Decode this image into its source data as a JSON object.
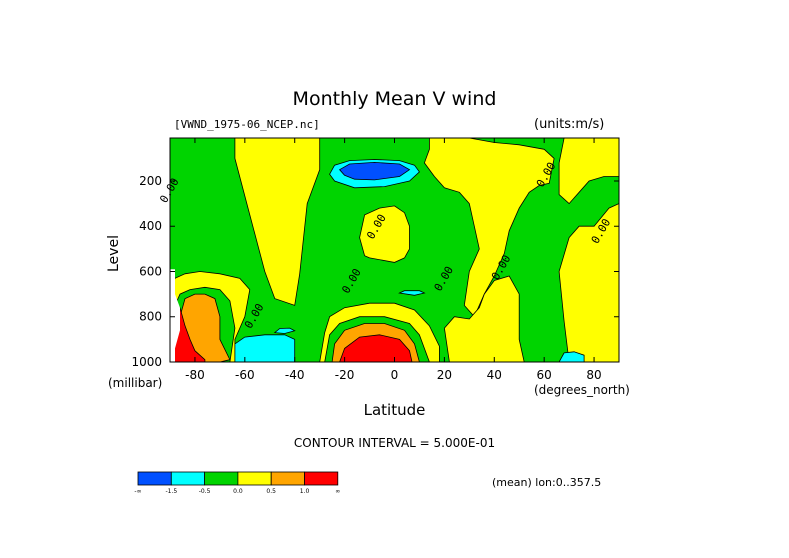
{
  "chart_data": {
    "type": "heatmap",
    "title": "Monthly Mean V wind",
    "file_label": "[VWND_1975-06_NCEP.nc]",
    "units_label": "(units:m/s)",
    "ylabel": "Level",
    "ylabel_units": "(millibar)",
    "xlabel": "Latitude",
    "xlabel_units": "(degrees_north)",
    "contour_interval_text": "CONTOUR INTERVAL = 5.000E-01",
    "mean_text": "(mean) lon:0..357.5",
    "xlim": [
      -90,
      90
    ],
    "ylim": [
      1000,
      10
    ],
    "x_ticks": [
      -80,
      -60,
      -40,
      -20,
      0,
      20,
      40,
      60,
      80
    ],
    "y_ticks": [
      200,
      400,
      600,
      800,
      1000
    ],
    "contour_labels": [
      {
        "text": "0.00",
        "lat": -89,
        "level": 250
      },
      {
        "text": "0.00",
        "lat": 62,
        "level": 180
      },
      {
        "text": "0.00",
        "lat": -6,
        "level": 410
      },
      {
        "text": "0.00",
        "lat": 84,
        "level": 430
      },
      {
        "text": "0.00",
        "lat": -16,
        "level": 650
      },
      {
        "text": "0.00",
        "lat": 21,
        "level": 640
      },
      {
        "text": "0.00",
        "lat": 44,
        "level": 590
      },
      {
        "text": "0.00",
        "lat": -55,
        "level": 805
      }
    ],
    "regions": [
      {
        "class": "0.0 to 0.5",
        "color": "#ffff00",
        "points": [
          [
            -64,
            10
          ],
          [
            -64,
            100
          ],
          [
            -58,
            350
          ],
          [
            -52,
            600
          ],
          [
            -48,
            720
          ],
          [
            -40,
            750
          ],
          [
            -38,
            610
          ],
          [
            -35,
            300
          ],
          [
            -30,
            150
          ],
          [
            -30,
            10
          ]
        ]
      },
      {
        "class": "0.0 to 0.5",
        "color": "#ffff00",
        "points": [
          [
            -10,
            540
          ],
          [
            -12,
            530
          ],
          [
            -14,
            450
          ],
          [
            -12,
            350
          ],
          [
            -6,
            320
          ],
          [
            0,
            310
          ],
          [
            4,
            340
          ],
          [
            6,
            400
          ],
          [
            6,
            500
          ],
          [
            4,
            540
          ],
          [
            0,
            560
          ]
        ]
      },
      {
        "class": "0.0 to 0.5",
        "color": "#ffff00",
        "points": [
          [
            14,
            10
          ],
          [
            14,
            60
          ],
          [
            12,
            120
          ],
          [
            16,
            180
          ],
          [
            20,
            230
          ],
          [
            26,
            250
          ],
          [
            30,
            300
          ],
          [
            32,
            400
          ],
          [
            34,
            500
          ],
          [
            30,
            600
          ],
          [
            28,
            750
          ],
          [
            32,
            800
          ],
          [
            36,
            700
          ],
          [
            40,
            620
          ],
          [
            44,
            520
          ],
          [
            46,
            420
          ],
          [
            50,
            320
          ],
          [
            54,
            250
          ],
          [
            58,
            220
          ],
          [
            62,
            210
          ],
          [
            64,
            100
          ],
          [
            60,
            60
          ],
          [
            50,
            40
          ],
          [
            40,
            30
          ],
          [
            30,
            10
          ]
        ]
      },
      {
        "class": "0.0 to 0.5",
        "color": "#ffff00",
        "points": [
          [
            20,
            850
          ],
          [
            24,
            800
          ],
          [
            30,
            810
          ],
          [
            34,
            760
          ],
          [
            36,
            700
          ],
          [
            40,
            640
          ],
          [
            46,
            620
          ],
          [
            50,
            700
          ],
          [
            50,
            900
          ],
          [
            52,
            1000
          ],
          [
            22,
            1000
          ]
        ]
      },
      {
        "class": "0.0 to 0.5",
        "color": "#ffff00",
        "points": [
          [
            68,
            10
          ],
          [
            66,
            120
          ],
          [
            66,
            260
          ],
          [
            70,
            300
          ],
          [
            74,
            250
          ],
          [
            78,
            200
          ],
          [
            84,
            180
          ],
          [
            90,
            180
          ],
          [
            90,
            10
          ]
        ]
      },
      {
        "class": "0.0 to 0.5",
        "color": "#ffff00",
        "points": [
          [
            70,
            1000
          ],
          [
            68,
            820
          ],
          [
            66,
            600
          ],
          [
            70,
            450
          ],
          [
            74,
            400
          ],
          [
            80,
            400
          ],
          [
            86,
            320
          ],
          [
            90,
            300
          ],
          [
            90,
            1000
          ]
        ]
      },
      {
        "class": "0.0 to 0.5",
        "color": "#ffff00",
        "points": [
          [
            -90,
            680
          ],
          [
            -88,
            630
          ],
          [
            -84,
            610
          ],
          [
            -78,
            600
          ],
          [
            -70,
            610
          ],
          [
            -62,
            630
          ],
          [
            -58,
            680
          ],
          [
            -60,
            800
          ],
          [
            -64,
            900
          ],
          [
            -64,
            1000
          ],
          [
            -90,
            1000
          ]
        ]
      },
      {
        "class": "0.0 to 0.5",
        "color": "#ffff00",
        "points": [
          [
            -30,
            1000
          ],
          [
            -28,
            870
          ],
          [
            -26,
            800
          ],
          [
            -20,
            760
          ],
          [
            -10,
            740
          ],
          [
            0,
            740
          ],
          [
            8,
            770
          ],
          [
            14,
            840
          ],
          [
            18,
            930
          ],
          [
            18,
            1000
          ]
        ]
      },
      {
        "class": "-0.5 to 0.0",
        "color": "#00d400",
        "points": [
          [
            -88,
            750
          ],
          [
            -86,
            700
          ],
          [
            -82,
            680
          ],
          [
            -76,
            670
          ],
          [
            -70,
            680
          ],
          [
            -66,
            730
          ],
          [
            -64,
            850
          ],
          [
            -66,
            1000
          ],
          [
            -88,
            1000
          ]
        ]
      },
      {
        "class": "-0.5 to 0.0",
        "color": "#00d400",
        "points": [
          [
            -28,
            1000
          ],
          [
            -26,
            880
          ],
          [
            -22,
            830
          ],
          [
            -14,
            800
          ],
          [
            -4,
            800
          ],
          [
            6,
            830
          ],
          [
            10,
            880
          ],
          [
            14,
            1000
          ]
        ]
      },
      {
        "class": "0.5 to 1.0",
        "color": "#ffa500",
        "points": [
          [
            -86,
            800
          ],
          [
            -84,
            720
          ],
          [
            -80,
            700
          ],
          [
            -76,
            700
          ],
          [
            -72,
            720
          ],
          [
            -70,
            800
          ],
          [
            -70,
            900
          ],
          [
            -66,
            990
          ],
          [
            -70,
            1000
          ],
          [
            -86,
            1000
          ]
        ]
      },
      {
        "class": "0.5 to 1.0",
        "color": "#ffa500",
        "points": [
          [
            -25,
            1000
          ],
          [
            -24,
            920
          ],
          [
            -20,
            860
          ],
          [
            -12,
            830
          ],
          [
            -4,
            830
          ],
          [
            4,
            860
          ],
          [
            8,
            920
          ],
          [
            10,
            1000
          ]
        ]
      },
      {
        "class": "> 1.0",
        "color": "#ff0000",
        "points": [
          [
            -90,
            1000
          ],
          [
            -90,
            720
          ],
          [
            -86,
            760
          ],
          [
            -84,
            840
          ],
          [
            -82,
            900
          ],
          [
            -80,
            950
          ],
          [
            -76,
            990
          ],
          [
            -76,
            1000
          ]
        ]
      },
      {
        "class": "> 1.0",
        "color": "#ff0000",
        "points": [
          [
            -22,
            1000
          ],
          [
            -20,
            940
          ],
          [
            -14,
            890
          ],
          [
            -6,
            880
          ],
          [
            2,
            900
          ],
          [
            6,
            950
          ],
          [
            7,
            1000
          ]
        ]
      },
      {
        "class": "-1.0 to -0.5",
        "color": "#00ffff",
        "points": [
          [
            -24,
            200
          ],
          [
            -26,
            170
          ],
          [
            -24,
            130
          ],
          [
            -18,
            110
          ],
          [
            -8,
            105
          ],
          [
            2,
            110
          ],
          [
            8,
            130
          ],
          [
            10,
            160
          ],
          [
            6,
            200
          ],
          [
            -4,
            225
          ],
          [
            -16,
            230
          ]
        ]
      },
      {
        "class": "-1.0 to -0.5",
        "color": "#00ffff",
        "points": [
          [
            -64,
            1000
          ],
          [
            -64,
            920
          ],
          [
            -60,
            890
          ],
          [
            -52,
            880
          ],
          [
            -44,
            880
          ],
          [
            -40,
            900
          ],
          [
            -40,
            1000
          ]
        ]
      },
      {
        "class": "-1.0 to -0.5",
        "color": "#00ffff",
        "points": [
          [
            -48,
            870
          ],
          [
            -46,
            852
          ],
          [
            -42,
            850
          ],
          [
            -40,
            862
          ],
          [
            -44,
            874
          ]
        ]
      },
      {
        "class": "-1.0 to -0.5",
        "color": "#00ffff",
        "points": [
          [
            2,
            695
          ],
          [
            4,
            685
          ],
          [
            10,
            685
          ],
          [
            12,
            695
          ],
          [
            8,
            705
          ]
        ]
      },
      {
        "class": "-1.0 to -0.5",
        "color": "#00ffff",
        "points": [
          [
            66,
            1000
          ],
          [
            68,
            960
          ],
          [
            72,
            955
          ],
          [
            76,
            970
          ],
          [
            76,
            1000
          ]
        ]
      },
      {
        "class": "< -1.5",
        "color": "#0050ff",
        "points": [
          [
            -20,
            175
          ],
          [
            -22,
            150
          ],
          [
            -18,
            125
          ],
          [
            -8,
            118
          ],
          [
            2,
            125
          ],
          [
            6,
            150
          ],
          [
            2,
            180
          ],
          [
            -8,
            195
          ],
          [
            -16,
            192
          ]
        ]
      }
    ],
    "colorbar": {
      "colors": [
        "#0050ff",
        "#00ffff",
        "#00d400",
        "#ffff00",
        "#ffa500",
        "#ff0000"
      ],
      "labels": [
        "-∞",
        "-1.5",
        "-0.5",
        "0.0",
        "0.5",
        "1.0",
        "∞"
      ]
    }
  },
  "background": "#00d400"
}
